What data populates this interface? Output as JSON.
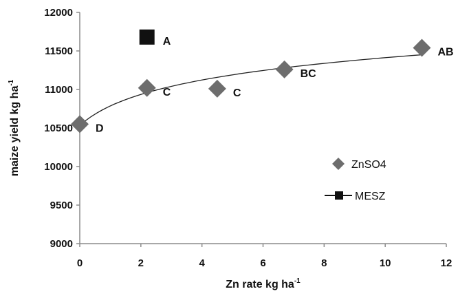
{
  "chart_data": {
    "type": "scatter",
    "xlabel": {
      "main": "Zn rate kg ha",
      "sup": "-1"
    },
    "ylabel": {
      "main": "maize yield kg ha",
      "sup": "-1"
    },
    "xlim": [
      0,
      12
    ],
    "ylim": [
      9000,
      12000
    ],
    "xticks": [
      0,
      2,
      4,
      6,
      8,
      10,
      12
    ],
    "yticks": [
      9000,
      9500,
      10000,
      10500,
      11000,
      11500,
      12000
    ],
    "grid": false,
    "legend_position": "right",
    "series": [
      {
        "name": "ZnSO4",
        "marker": "diamond",
        "color": "#6d6d6d",
        "points": [
          {
            "x": 0,
            "y": 10550,
            "label": "D"
          },
          {
            "x": 2.2,
            "y": 11020,
            "label": "C"
          },
          {
            "x": 4.5,
            "y": 11010,
            "label": "C"
          },
          {
            "x": 6.7,
            "y": 11260,
            "label": "BC"
          },
          {
            "x": 11.2,
            "y": 11540,
            "label": "AB"
          }
        ],
        "trendline": "logarithmic"
      },
      {
        "name": "MESZ",
        "marker": "square",
        "color": "#111111",
        "points": [
          {
            "x": 2.2,
            "y": 11680,
            "label": "A"
          }
        ]
      }
    ]
  }
}
